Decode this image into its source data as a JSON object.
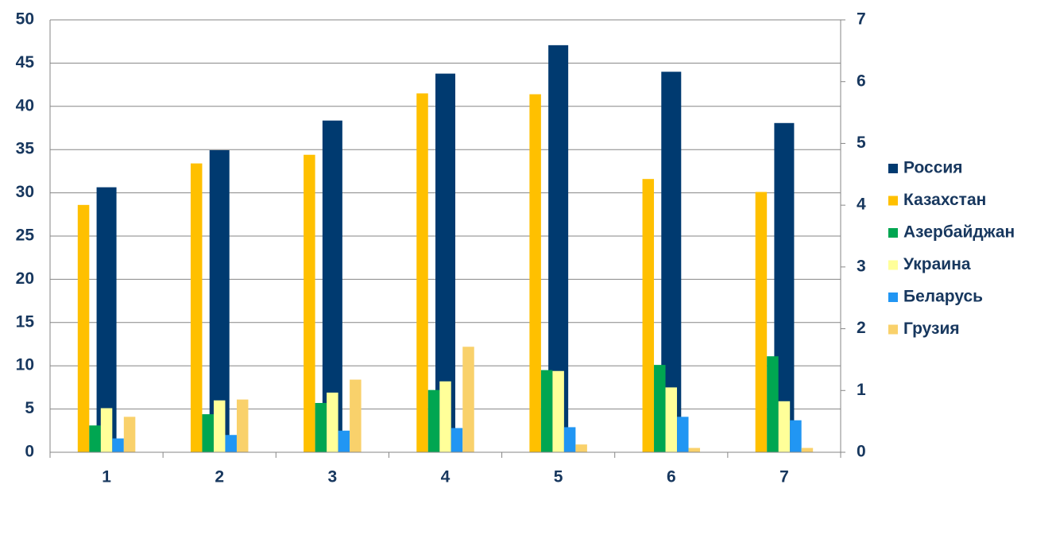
{
  "chart_data": {
    "type": "bar",
    "categories": [
      "1",
      "2",
      "3",
      "4",
      "5",
      "6",
      "7"
    ],
    "series": [
      {
        "name": "Россия",
        "color": "#003a70",
        "axis": "y2",
        "values": [
          4.29,
          4.89,
          5.37,
          6.13,
          6.59,
          6.16,
          5.33
        ]
      },
      {
        "name": "Казахстан",
        "color": "#ffc000",
        "values": [
          28.6,
          33.4,
          34.4,
          41.5,
          41.4,
          31.6,
          30.1
        ]
      },
      {
        "name": "Азербайджан",
        "color": "#00a651",
        "values": [
          3.1,
          4.4,
          5.7,
          7.2,
          9.5,
          10.1,
          11.1
        ]
      },
      {
        "name": "Украина",
        "color": "#ffff99",
        "values": [
          5.1,
          6.0,
          6.9,
          8.2,
          9.4,
          7.5,
          5.9
        ]
      },
      {
        "name": "Беларусь",
        "color": "#2196f3",
        "values": [
          1.6,
          2.0,
          2.5,
          2.8,
          2.9,
          4.1,
          3.7
        ]
      },
      {
        "name": "Грузия",
        "color": "#f9d16b",
        "values": [
          4.1,
          6.1,
          8.4,
          12.2,
          0.9,
          0.5,
          0.5
        ]
      }
    ],
    "ylim": [
      0,
      50
    ],
    "yticks": [
      0,
      5,
      10,
      15,
      20,
      25,
      30,
      35,
      40,
      45,
      50
    ],
    "y2lim": [
      0,
      7
    ],
    "y2ticks": [
      0,
      1,
      2,
      3,
      4,
      5,
      6,
      7
    ],
    "grid": true,
    "legend": "right"
  }
}
